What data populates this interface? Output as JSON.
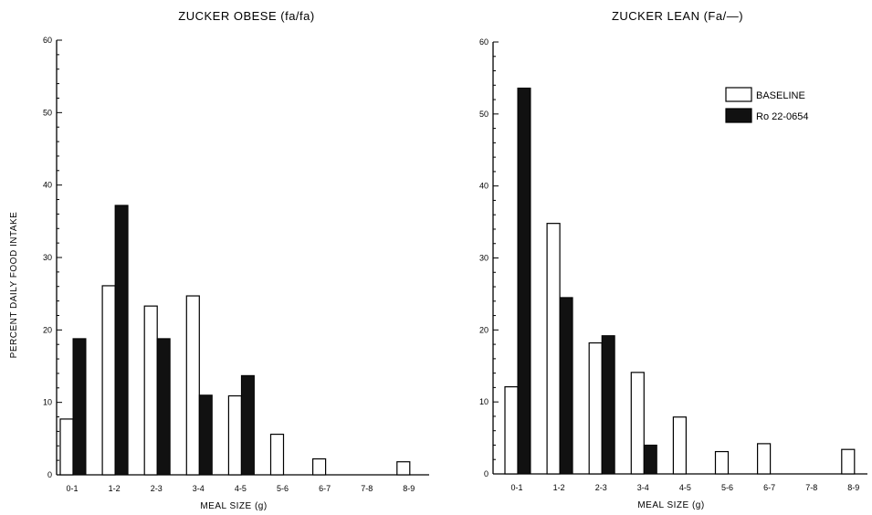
{
  "chart_data": [
    {
      "type": "bar",
      "title": "ZUCKER OBESE (fa/fa)",
      "xlabel": "MEAL SIZE (g)",
      "ylabel": "PERCENT DAILY FOOD INTAKE",
      "ylim": [
        0,
        60
      ],
      "yticks": [
        "0",
        "10",
        "20",
        "30",
        "40",
        "50",
        "60"
      ],
      "categories": [
        "0-1",
        "1-2",
        "2-3",
        "3-4",
        "4-5",
        "5-6",
        "6-7",
        "7-8",
        "8-9"
      ],
      "series": [
        {
          "name": "BASELINE",
          "color": "#ffffff",
          "values": [
            7.7,
            26.1,
            23.3,
            24.7,
            10.9,
            5.6,
            2.2,
            0,
            1.8
          ]
        },
        {
          "name": "Ro 22-0654",
          "color": "#111111",
          "values": [
            18.8,
            37.2,
            18.8,
            11.0,
            13.7,
            0,
            0,
            0,
            0
          ]
        }
      ]
    },
    {
      "type": "bar",
      "title": "ZUCKER LEAN (Fa/—)",
      "xlabel": "MEAL SIZE (g)",
      "ylabel": "",
      "ylim": [
        0,
        60
      ],
      "yticks": [
        "0",
        "10",
        "20",
        "30",
        "40",
        "50",
        "60"
      ],
      "categories": [
        "0-1",
        "1-2",
        "2-3",
        "3-4",
        "4-5",
        "5-6",
        "6-7",
        "7-8",
        "8-9"
      ],
      "legend_position": "top-right",
      "series": [
        {
          "name": "BASELINE",
          "color": "#ffffff",
          "values": [
            12.1,
            34.8,
            18.2,
            14.1,
            7.9,
            3.1,
            4.2,
            0,
            3.4
          ]
        },
        {
          "name": "Ro 22-0654",
          "color": "#111111",
          "values": [
            53.6,
            24.5,
            19.2,
            4.0,
            0,
            0,
            0,
            0,
            0
          ]
        }
      ]
    }
  ]
}
